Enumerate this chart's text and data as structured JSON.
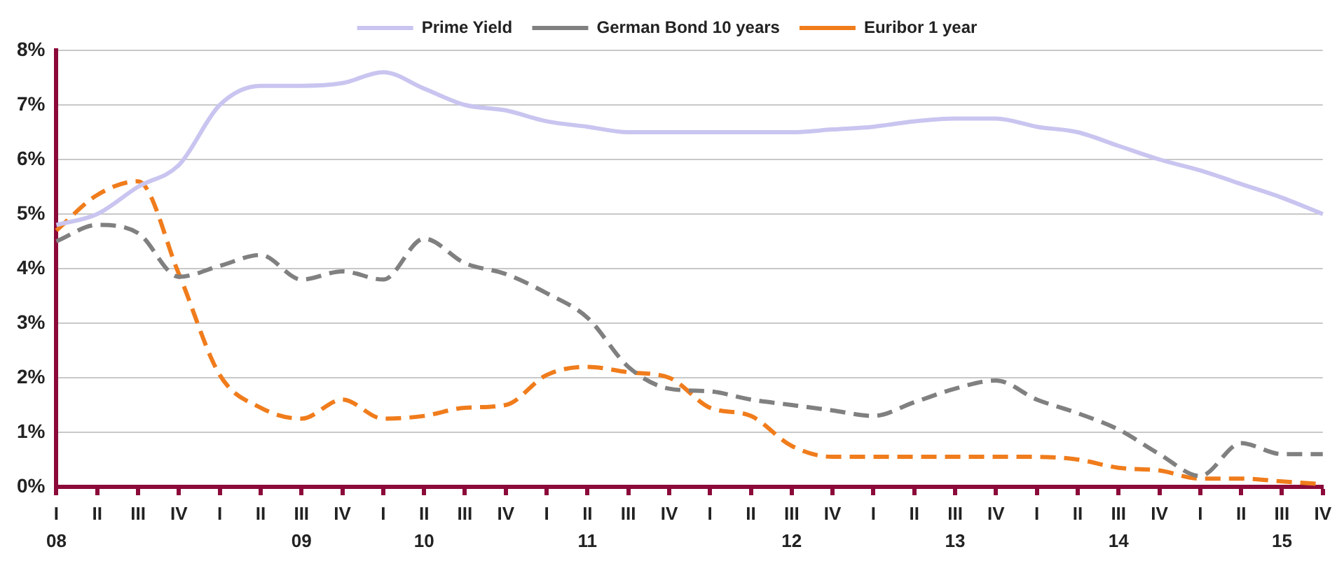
{
  "chart_data": {
    "type": "line",
    "categories": [
      "I\n08",
      "II",
      "III",
      "IV",
      "I",
      "II",
      "III\n09",
      "IV",
      "I",
      "II\n10",
      "III",
      "IV",
      "I",
      "II\n11",
      "III",
      "IV",
      "I",
      "II",
      "III\n12",
      "IV",
      "I",
      "II",
      "III\n13",
      "IV",
      "I",
      "II",
      "III\n14",
      "IV",
      "I",
      "II",
      "III\n15",
      "IV"
    ],
    "series": [
      {
        "name": "Prime Yield",
        "color": "#c9c5f0",
        "line_style": "solid",
        "values": [
          4.8,
          5.0,
          5.5,
          5.9,
          7.0,
          7.35,
          7.35,
          7.4,
          7.6,
          7.3,
          7.0,
          6.9,
          6.7,
          6.6,
          6.5,
          6.5,
          6.5,
          6.5,
          6.5,
          6.55,
          6.6,
          6.7,
          6.75,
          6.75,
          6.6,
          6.5,
          6.25,
          6.0,
          5.8,
          5.55,
          5.3,
          5.0
        ]
      },
      {
        "name": "German Bond 10 years",
        "color": "#808080",
        "line_style": "dashed",
        "values": [
          4.5,
          4.8,
          4.65,
          3.85,
          4.05,
          4.25,
          3.8,
          3.95,
          3.8,
          4.55,
          4.1,
          3.9,
          3.55,
          3.1,
          2.2,
          1.8,
          1.75,
          1.6,
          1.5,
          1.4,
          1.3,
          1.55,
          1.8,
          1.95,
          1.6,
          1.35,
          1.05,
          0.6,
          0.2,
          0.8,
          0.6,
          0.6
        ]
      },
      {
        "name": "Euribor 1 year",
        "color": "#f07c1c",
        "line_style": "dashed",
        "values": [
          4.7,
          5.35,
          5.6,
          3.9,
          2.05,
          1.45,
          1.25,
          1.6,
          1.25,
          1.3,
          1.45,
          1.5,
          2.05,
          2.2,
          2.1,
          2.0,
          1.45,
          1.3,
          0.75,
          0.55,
          0.55,
          0.55,
          0.55,
          0.55,
          0.55,
          0.5,
          0.35,
          0.3,
          0.15,
          0.15,
          0.1,
          0.05
        ]
      }
    ],
    "ylim": [
      0,
      8
    ],
    "yticks": [
      {
        "value": 0,
        "label": "0%"
      },
      {
        "value": 1,
        "label": "1%"
      },
      {
        "value": 2,
        "label": "2%"
      },
      {
        "value": 3,
        "label": "3%"
      },
      {
        "value": 4,
        "label": "4%"
      },
      {
        "value": 5,
        "label": "5%"
      },
      {
        "value": 6,
        "label": "6%"
      },
      {
        "value": 7,
        "label": "7%"
      },
      {
        "value": 8,
        "label": "8%"
      }
    ],
    "grid": "y",
    "legend": "top",
    "marker": "none"
  }
}
